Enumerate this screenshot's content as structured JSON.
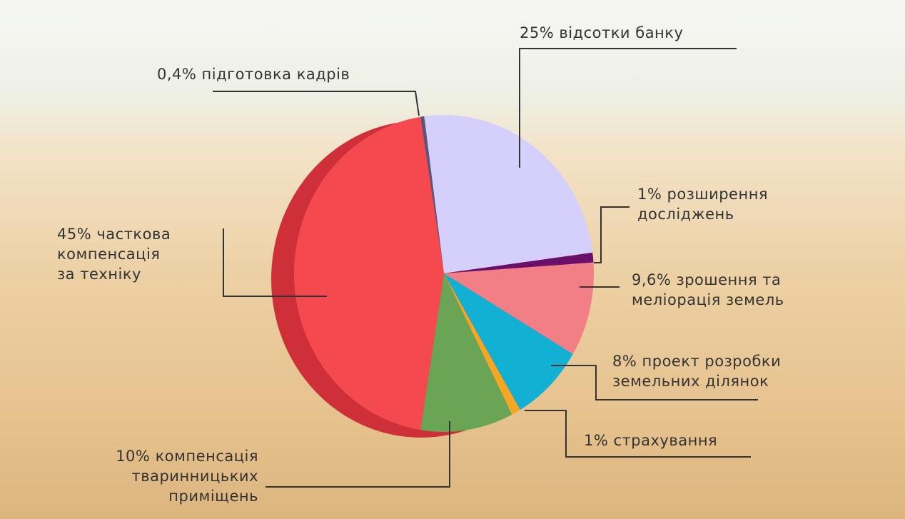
{
  "chart_data": {
    "type": "pie",
    "categories": [
      "підготовка кадрів",
      "відсотки банку",
      "розширення\nдосліджень",
      "зрошення та\nмеліорація земель",
      "проект розробки\nземельних ділянок",
      "страхування",
      "компенсація\nтваринницьких\nприміщень",
      "часткова\nкомпенсація\nза техніку"
    ],
    "values": [
      0.4,
      25,
      1,
      9.6,
      8,
      1,
      10,
      45
    ],
    "value_labels": [
      "0,4%",
      "25%",
      "1%",
      "9,6%",
      "8%",
      "1%",
      "10%",
      "45%"
    ],
    "colors": [
      "#55587a",
      "#d4d0fb",
      "#6a0f6a",
      "#f37f86",
      "#12b1d3",
      "#f5a623",
      "#69a554",
      "#f44a4f"
    ]
  }
}
